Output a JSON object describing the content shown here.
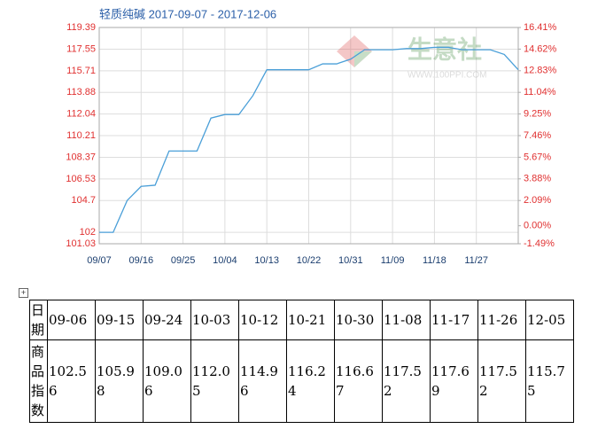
{
  "chart_data": {
    "type": "line",
    "title": "轻质纯碱 2017-09-07 - 2017-12-06",
    "x": [
      "09/07",
      "09/10",
      "09/13",
      "09/16",
      "09/19",
      "09/22",
      "09/25",
      "09/28",
      "10/01",
      "10/04",
      "10/07",
      "10/10",
      "10/13",
      "10/16",
      "10/19",
      "10/22",
      "10/25",
      "10/28",
      "10/31",
      "11/03",
      "11/06",
      "11/09",
      "11/12",
      "11/15",
      "11/18",
      "11/21",
      "11/24",
      "11/27",
      "11/30",
      "12/03",
      "12/06"
    ],
    "series": [
      {
        "color": "#4a9fd8",
        "values": [
          102,
          102,
          104.7,
          105.9,
          106.0,
          108.9,
          108.9,
          108.9,
          111.7,
          112.0,
          112.0,
          113.6,
          115.8,
          115.8,
          115.8,
          115.8,
          116.3,
          116.3,
          116.7,
          117.5,
          117.5,
          117.5,
          117.6,
          117.6,
          117.7,
          117.7,
          117.5,
          117.5,
          117.5,
          117.1,
          115.8
        ]
      }
    ],
    "xlim": [
      "09/07",
      "12/06"
    ],
    "xticks": [
      "09/07",
      "09/16",
      "09/25",
      "10/04",
      "10/13",
      "10/22",
      "10/31",
      "11/09",
      "11/18",
      "11/27"
    ],
    "ylim": [
      101.03,
      119.39
    ],
    "yticks": [
      101.03,
      102,
      104.7,
      106.53,
      108.37,
      110.21,
      112.04,
      113.88,
      115.71,
      117.55,
      119.39
    ],
    "y2lim": [
      -1.49,
      16.41
    ],
    "y2ticks": [
      {
        "value": -1.49,
        "label": "-1.49%"
      },
      {
        "value": 0,
        "label": "0.00%"
      },
      {
        "value": 2.09,
        "label": "2.09%"
      },
      {
        "value": 3.88,
        "label": "3.88%"
      },
      {
        "value": 5.67,
        "label": "5.67%"
      },
      {
        "value": 7.46,
        "label": "7.46%"
      },
      {
        "value": 9.25,
        "label": "9.25%"
      },
      {
        "value": 11.04,
        "label": "11.04%"
      },
      {
        "value": 12.83,
        "label": "12.83%"
      },
      {
        "value": 14.62,
        "label": "14.62%"
      },
      {
        "value": 16.41,
        "label": "16.41%"
      }
    ],
    "grid": true
  },
  "watermark": {
    "name": "生意社",
    "url": "WWW.100PPI.COM"
  },
  "table": {
    "header": [
      "日期",
      "09-06",
      "09-15",
      "09-24",
      "10-03",
      "10-12",
      "10-21",
      "10-30",
      "11-08",
      "11-17",
      "11-26",
      "12-05"
    ],
    "row": [
      "商品指数",
      102.56,
      105.98,
      109.06,
      112.05,
      114.96,
      116.24,
      116.67,
      117.52,
      117.69,
      117.52,
      115.75
    ]
  }
}
